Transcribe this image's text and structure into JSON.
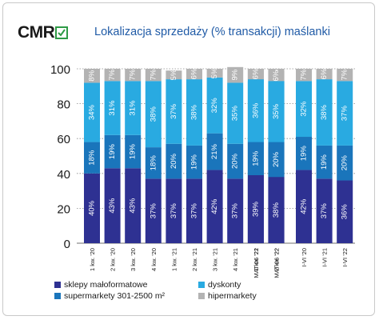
{
  "logo": "CMR",
  "colors": {
    "sklepy": "#2e3192",
    "supermarkety": "#1a75bb",
    "dyskonty": "#29aae1",
    "hipermarkety": "#b3b3b3",
    "title": "#1f5aa6",
    "logo_accent": "#2e9b46"
  },
  "chart_data": {
    "type": "bar",
    "stacked": true,
    "title": "Lokalizacja sprzedaży (% transakcji) maślanki",
    "categories": [
      "1 kw. '20",
      "2 kw. '20",
      "3 kw. '20",
      "4 kw. '20",
      "1 kw. '21",
      "2 kw. '21",
      "3 kw. '21",
      "4 kw. '21",
      "1 kw. '22",
      "2 kw. '22",
      "MAT 06 '21",
      "MAT 06 '22",
      "I-VI '20",
      "I-VI '21",
      "I-VI '22"
    ],
    "groups": [
      [
        0,
        9
      ],
      [
        10,
        11
      ],
      [
        12,
        14
      ]
    ],
    "ylim": [
      0,
      100
    ],
    "yticks": [
      0,
      20,
      40,
      60,
      80,
      100
    ],
    "series": [
      {
        "name": "sklepy małoformatowe",
        "values": [
          40,
          43,
          43,
          37,
          37,
          37,
          42,
          37,
          37,
          36,
          39,
          38,
          42,
          37,
          36
        ]
      },
      {
        "name": "supermarkety 301-2500 m²",
        "values": [
          18,
          19,
          19,
          18,
          20,
          19,
          21,
          20,
          21,
          19,
          19,
          20,
          19,
          19,
          20
        ]
      },
      {
        "name": "dyskonty",
        "values": [
          34,
          31,
          31,
          38,
          37,
          38,
          32,
          35,
          35,
          38,
          36,
          35,
          32,
          38,
          37
        ]
      },
      {
        "name": "hipermarkety",
        "values": [
          8,
          7,
          7,
          7,
          5,
          6,
          5,
          9,
          7,
          7,
          6,
          6,
          7,
          6,
          7
        ]
      }
    ],
    "grid": true,
    "legend_position": "bottom"
  }
}
